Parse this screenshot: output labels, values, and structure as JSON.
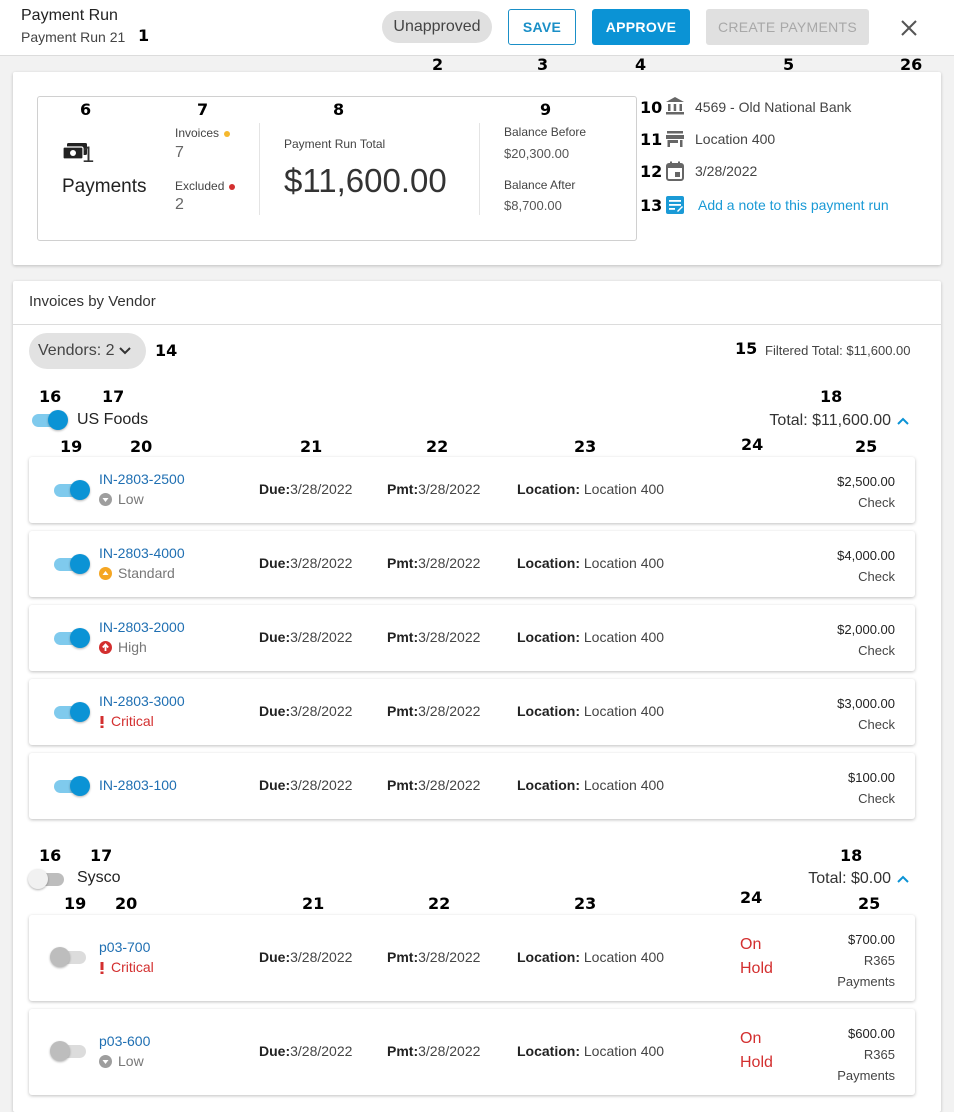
{
  "header": {
    "title": "Payment Run",
    "subtitle": "Payment Run 21",
    "status": "Unapproved",
    "save_label": "SAVE",
    "approve_label": "APPROVE",
    "create_payments_label": "CREATE PAYMENTS"
  },
  "annotations": {
    "n1": "1",
    "n2": "2",
    "n3": "3",
    "n4": "4",
    "n5": "5",
    "n26": "26",
    "n6": "6",
    "n7": "7",
    "n8": "8",
    "n9": "9",
    "n10": "10",
    "n11": "11",
    "n12": "12",
    "n13": "13",
    "n14": "14",
    "n15": "15",
    "n16": "16",
    "n17": "17",
    "n18": "18",
    "n19": "19",
    "n20": "20",
    "n21": "21",
    "n22": "22",
    "n23": "23",
    "n24": "24",
    "n25": "25"
  },
  "summary": {
    "payments_count": "1",
    "payments_label": "Payments",
    "invoices_label": "Invoices",
    "invoices_count": "7",
    "excluded_label": "Excluded",
    "excluded_count": "2",
    "total_label": "Payment Run Total",
    "total_value": "$11,600.00",
    "balance_before_label": "Balance Before",
    "balance_before_value": "$20,300.00",
    "balance_after_label": "Balance After",
    "balance_after_value": "$8,700.00",
    "bank": "4569 - Old National Bank",
    "location": "Location 400",
    "date": "3/28/2022",
    "note_link": "Add a note to this payment run"
  },
  "vendors_section": {
    "title": "Invoices by Vendor",
    "vendors_filter": "Vendors: 2",
    "filtered_total": "Filtered Total: $11,600.00"
  },
  "labels": {
    "due": "Due:",
    "pmt": "Pmt:",
    "location": "Location:"
  },
  "vendors": [
    {
      "name": "US Foods",
      "total": "Total: $11,600.00",
      "enabled": true,
      "invoices": [
        {
          "id": "IN-2803-2500",
          "priority": "Low",
          "priority_icon": "low-priority-icon",
          "due": "3/28/2022",
          "pmt": "3/28/2022",
          "location": "Location 400",
          "hold": "",
          "amount": "$2,500.00",
          "method": "Check",
          "included": true
        },
        {
          "id": "IN-2803-4000",
          "priority": "Standard",
          "priority_icon": "standard-priority-icon",
          "due": "3/28/2022",
          "pmt": "3/28/2022",
          "location": "Location 400",
          "hold": "",
          "amount": "$4,000.00",
          "method": "Check",
          "included": true
        },
        {
          "id": "IN-2803-2000",
          "priority": "High",
          "priority_icon": "high-priority-icon",
          "due": "3/28/2022",
          "pmt": "3/28/2022",
          "location": "Location 400",
          "hold": "",
          "amount": "$2,000.00",
          "method": "Check",
          "included": true
        },
        {
          "id": "IN-2803-3000",
          "priority": "Critical",
          "priority_icon": "critical-priority-icon",
          "due": "3/28/2022",
          "pmt": "3/28/2022",
          "location": "Location 400",
          "hold": "",
          "amount": "$3,000.00",
          "method": "Check",
          "included": true
        },
        {
          "id": "IN-2803-100",
          "priority": "",
          "priority_icon": "",
          "due": "3/28/2022",
          "pmt": "3/28/2022",
          "location": "Location 400",
          "hold": "",
          "amount": "$100.00",
          "method": "Check",
          "included": true
        }
      ]
    },
    {
      "name": "Sysco",
      "total": "Total: $0.00",
      "enabled": false,
      "invoices": [
        {
          "id": "p03-700",
          "priority": "Critical",
          "priority_icon": "critical-priority-icon",
          "due": "3/28/2022",
          "pmt": "3/28/2022",
          "location": "Location 400",
          "hold_line1": "On",
          "hold_line2": "Hold",
          "amount": "$700.00",
          "method_line1": "R365",
          "method_line2": "Payments",
          "included": false
        },
        {
          "id": "p03-600",
          "priority": "Low",
          "priority_icon": "low-priority-icon",
          "due": "3/28/2022",
          "pmt": "3/28/2022",
          "location": "Location 400",
          "hold_line1": "On",
          "hold_line2": "Hold",
          "amount": "$600.00",
          "method_line1": "R365",
          "method_line2": "Payments",
          "included": false
        }
      ]
    }
  ],
  "colors": {
    "accent": "#0b93d5",
    "link": "#1f6fb2",
    "critical": "#d32f2f",
    "standard": "#f5a623",
    "low": "#9e9e9e"
  }
}
